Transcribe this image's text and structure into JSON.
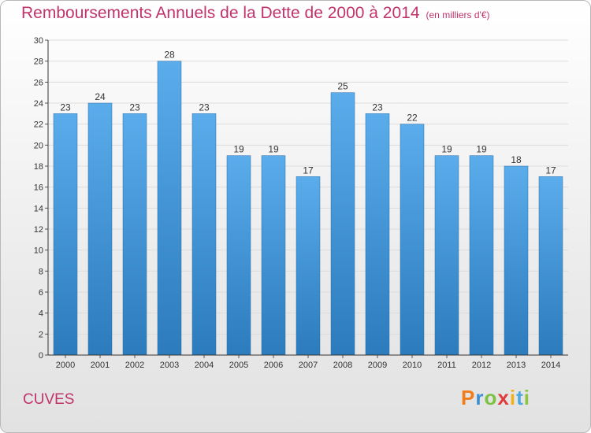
{
  "title": "Remboursements Annuels de la Dette de 2000 à 2014",
  "subtitle": "(en milliers d'€)",
  "location": "CUVES",
  "logo_text": "Proxiti",
  "logo_colors": [
    "#f07d1a",
    "#3c8fd6",
    "#7cc242",
    "#e03a3a",
    "#f2b01a",
    "#4aa8e0",
    "#8cc63f"
  ],
  "colors": {
    "title": "#c0336b",
    "bar_top": "#5aaceb",
    "bar_bottom": "#2b7bbd",
    "axis": "#333333"
  },
  "chart_data": {
    "type": "bar",
    "title": "Remboursements Annuels de la Dette de 2000 à 2014",
    "subtitle": "(en milliers d'€)",
    "categories": [
      "2000",
      "2001",
      "2002",
      "2003",
      "2004",
      "2005",
      "2006",
      "2007",
      "2008",
      "2009",
      "2010",
      "2011",
      "2012",
      "2013",
      "2014"
    ],
    "values": [
      23,
      24,
      23,
      28,
      23,
      19,
      19,
      17,
      25,
      23,
      22,
      19,
      19,
      18,
      17
    ],
    "ylim": [
      0,
      30
    ],
    "yticks": [
      0,
      2,
      4,
      6,
      8,
      10,
      12,
      14,
      16,
      18,
      20,
      22,
      24,
      26,
      28,
      30
    ],
    "grid": true,
    "data_labels": true
  }
}
